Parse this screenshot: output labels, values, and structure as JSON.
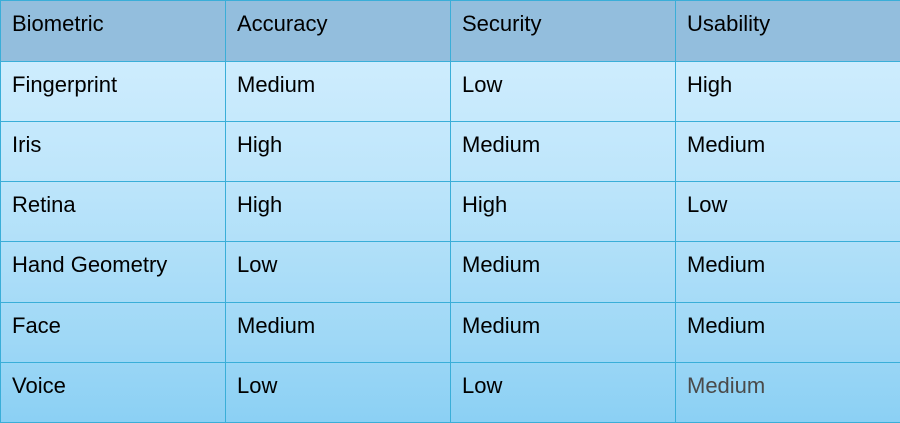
{
  "table": {
    "headers": [
      "Biometric",
      "Accuracy",
      "Security",
      "Usability"
    ],
    "rows": [
      [
        "Fingerprint",
        "Medium",
        "Low",
        "High"
      ],
      [
        "Iris",
        "High",
        "Medium",
        "Medium"
      ],
      [
        "Retina",
        "High",
        "High",
        "Low"
      ],
      [
        "Hand Geometry",
        "Low",
        "Medium",
        "Medium"
      ],
      [
        "Face",
        "Medium",
        "Medium",
        "Medium"
      ],
      [
        "Voice",
        "Low",
        "Low",
        "Medium"
      ]
    ]
  },
  "colors": {
    "header_background": "#93bedd",
    "body_gradient_top": "#d6f0ff",
    "body_gradient_bottom": "#8bd0f4",
    "grid_line": "#3aaed8"
  }
}
